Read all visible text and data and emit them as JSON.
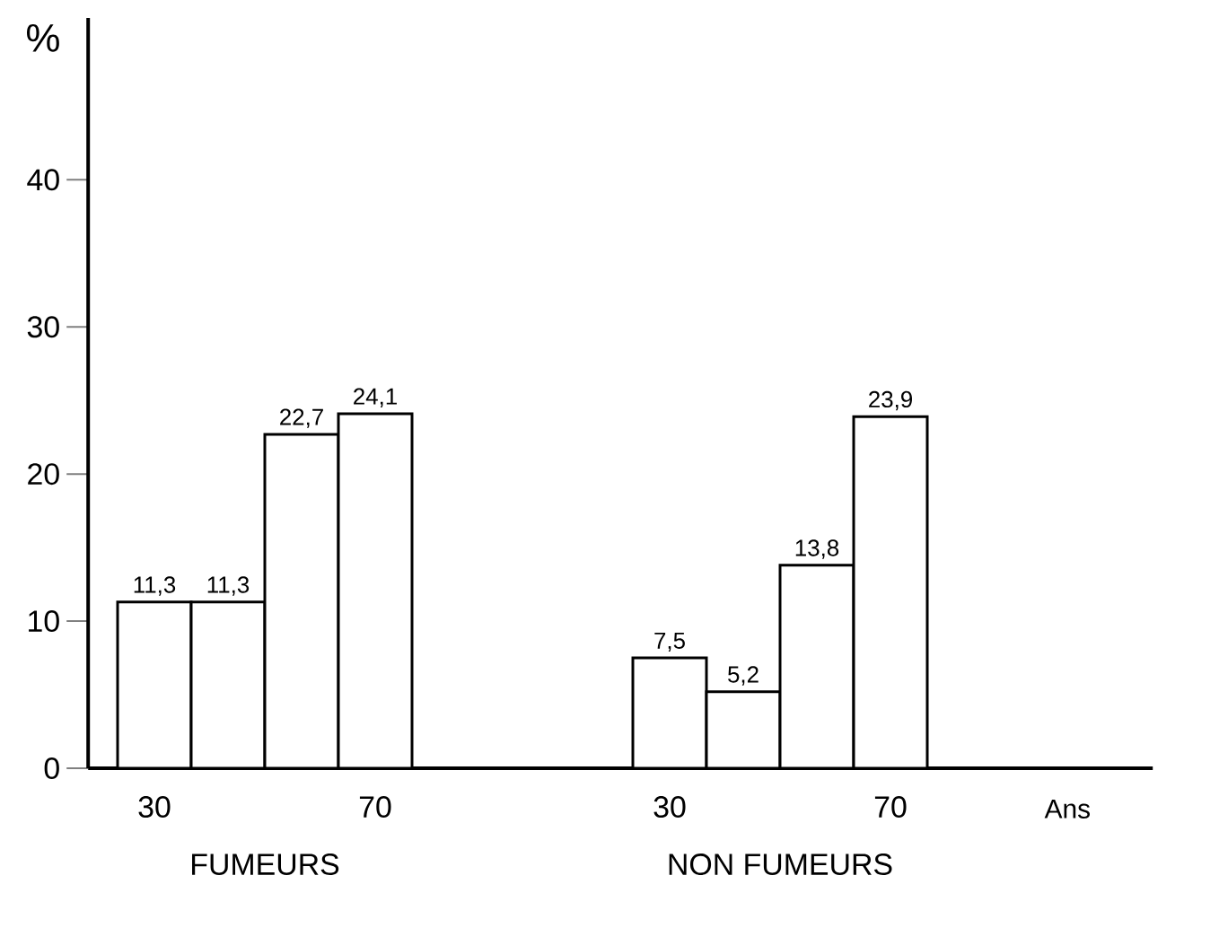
{
  "chart_data": {
    "type": "bar",
    "xlabel": "Ans",
    "ylabel": "%",
    "categories": [
      "30",
      null,
      null,
      "70",
      null,
      null,
      null,
      "30",
      null,
      null,
      "70"
    ],
    "series": [
      {
        "name": "FUMEURS",
        "color": "#000000",
        "values": [
          11.3,
          11.3,
          22.7,
          24.1,
          null,
          null,
          null,
          null,
          null,
          null,
          null
        ],
        "value_labels": [
          "11,3",
          "11,3",
          "22,7",
          "24,1",
          null,
          null,
          null,
          null,
          null,
          null,
          null
        ]
      },
      {
        "name": "NON FUMEURS",
        "color": "#000000",
        "values": [
          null,
          null,
          null,
          null,
          null,
          null,
          null,
          7.5,
          5.2,
          13.8,
          23.9
        ],
        "value_labels": [
          null,
          null,
          null,
          null,
          null,
          null,
          null,
          "7,5",
          "5,2",
          "13,8",
          "23,9"
        ]
      }
    ],
    "ylim": [
      0,
      51
    ],
    "yticks": [
      0,
      10,
      20,
      30,
      40
    ],
    "grid": false
  }
}
